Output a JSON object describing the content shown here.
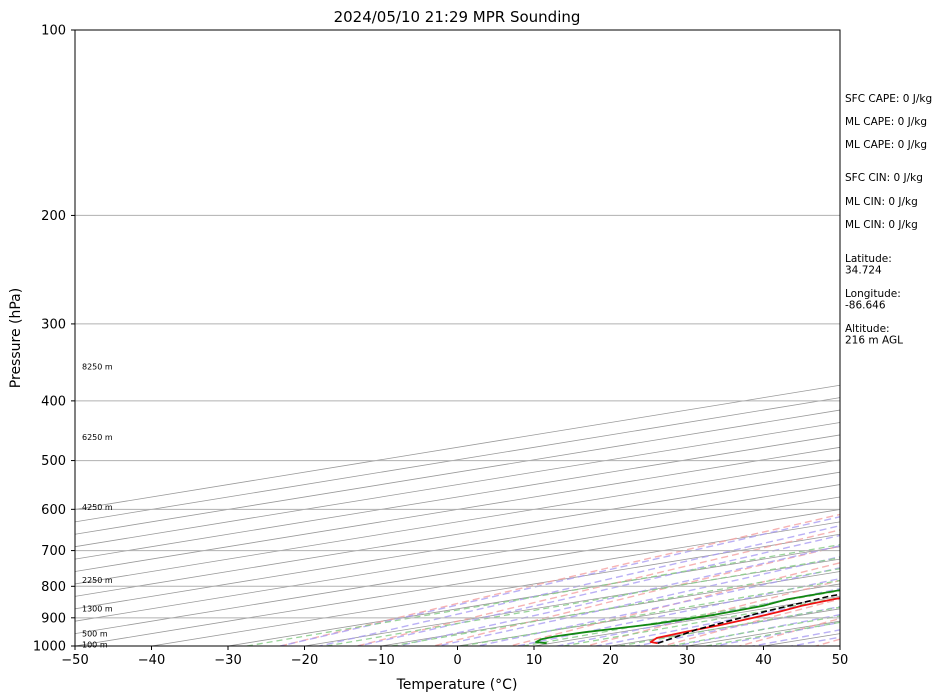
{
  "chart_data": {
    "type": "skew-t",
    "title": "2024/05/10 21:29 MPR Sounding",
    "xlabel": "Temperature (°C)",
    "ylabel": "Pressure (hPa)",
    "xlim": [
      -50,
      50
    ],
    "ylim": [
      1000,
      100
    ],
    "y_scale": "log",
    "x_ticks": [
      -50,
      -40,
      -30,
      -20,
      -10,
      0,
      10,
      20,
      30,
      40,
      50
    ],
    "y_ticks": [
      1000,
      900,
      800,
      700,
      600,
      500,
      400,
      300,
      200,
      100
    ],
    "grid": true,
    "colors": {
      "temperature": "#ee1111",
      "dewpoint": "#118811",
      "parcel": "#000000",
      "dry_adiabats": "#f4a0a0",
      "moist_adiabats": "#a99cf2",
      "mixing_ratio": "#88cc88",
      "isotherms": "#999999"
    },
    "series": [
      {
        "key": "temperature",
        "points": [
          [
            24.0,
            990
          ],
          [
            22.0,
            985
          ],
          [
            19.5,
            970
          ],
          [
            18.5,
            950
          ],
          [
            17.5,
            925
          ],
          [
            16.0,
            900
          ],
          [
            14.5,
            880
          ],
          [
            12.5,
            860
          ],
          [
            11.5,
            840
          ],
          [
            11.0,
            820
          ],
          [
            11.5,
            800
          ],
          [
            12.0,
            780
          ],
          [
            12.5,
            760
          ],
          [
            12.8,
            740
          ],
          [
            13.0,
            720
          ],
          [
            12.5,
            700
          ],
          [
            10.0,
            650
          ],
          [
            7.5,
            600
          ],
          [
            5.0,
            550
          ],
          [
            1.5,
            500
          ],
          [
            -2.0,
            460
          ],
          [
            -4.5,
            430
          ],
          [
            -7.5,
            400
          ],
          [
            -10.0,
            375
          ],
          [
            -13.5,
            350
          ],
          [
            -15.0,
            335
          ],
          [
            -16.0,
            320
          ],
          [
            -17.0,
            305
          ],
          [
            -17.5,
            295
          ],
          [
            -18.0,
            285
          ],
          [
            -19.0,
            275
          ],
          [
            -20.5,
            265
          ]
        ]
      },
      {
        "key": "dewpoint",
        "points": [
          [
            9.5,
            990
          ],
          [
            7.0,
            985
          ],
          [
            5.5,
            975
          ],
          [
            5.0,
            965
          ],
          [
            5.5,
            950
          ],
          [
            8.0,
            920
          ],
          [
            8.5,
            890
          ],
          [
            7.5,
            860
          ],
          [
            5.5,
            840
          ],
          [
            5.0,
            810
          ],
          [
            4.0,
            790
          ],
          [
            -2.0,
            760
          ],
          [
            -9.0,
            730
          ],
          [
            -13.0,
            700
          ],
          [
            -20.0,
            680
          ],
          [
            -21.5,
            660
          ],
          [
            -24.0,
            630
          ],
          [
            -25.5,
            605
          ],
          [
            -25.5,
            590
          ],
          [
            -26.0,
            570
          ],
          [
            -24.0,
            540
          ],
          [
            -24.5,
            520
          ],
          [
            -25.0,
            500
          ],
          [
            -24.0,
            480
          ],
          [
            -23.5,
            460
          ],
          [
            -23.0,
            450
          ],
          [
            -23.5,
            440
          ],
          [
            -22.5,
            425
          ],
          [
            -23.5,
            415
          ],
          [
            -25.0,
            405
          ],
          [
            -25.0,
            385
          ],
          [
            -26.0,
            375
          ],
          [
            -26.5,
            360
          ],
          [
            -27.0,
            350
          ],
          [
            -28.5,
            335
          ],
          [
            -30.0,
            322
          ],
          [
            -31.5,
            315
          ],
          [
            -31.0,
            305
          ],
          [
            -40.0,
            295
          ],
          [
            -48.0,
            290
          ],
          [
            -50.0,
            288
          ]
        ]
      },
      {
        "key": "parcel",
        "points": [
          [
            24.0,
            990
          ],
          [
            18.0,
            940
          ],
          [
            12.5,
            880
          ],
          [
            8.5,
            830
          ],
          [
            8.0,
            800
          ],
          [
            7.5,
            750
          ],
          [
            6.5,
            700
          ],
          [
            4.0,
            650
          ],
          [
            1.5,
            600
          ],
          [
            -1.0,
            550
          ],
          [
            -3.5,
            500
          ],
          [
            -7.0,
            450
          ],
          [
            -10.5,
            400
          ],
          [
            -14.5,
            350
          ],
          [
            -19.0,
            300
          ],
          [
            -24.5,
            268
          ]
        ]
      }
    ],
    "height_labels": [
      {
        "text": "8250 m",
        "p": 352
      },
      {
        "text": "6250 m",
        "p": 458
      },
      {
        "text": "4250 m",
        "p": 595
      },
      {
        "text": "2250 m",
        "p": 781
      },
      {
        "text": "1300 m",
        "p": 870
      },
      {
        "text": "500 m",
        "p": 955
      },
      {
        "text": "100 m",
        "p": 995
      }
    ],
    "stats": [
      {
        "text": "SFC CAPE: 0 J/kg"
      },
      {
        "text": "ML CAPE: 0 J/kg"
      },
      {
        "text": "ML CAPE: 0 J/kg"
      },
      {
        "text": "SFC CIN: 0 J/kg"
      },
      {
        "text": "ML CIN: 0 J/kg"
      },
      {
        "text": "ML CIN: 0 J/kg"
      },
      {
        "label": "Latitude:",
        "value": "34.724"
      },
      {
        "label": "Longitude:",
        "value": "-86.646"
      },
      {
        "label": "Altitude:",
        "value": "216 m AGL"
      }
    ]
  }
}
